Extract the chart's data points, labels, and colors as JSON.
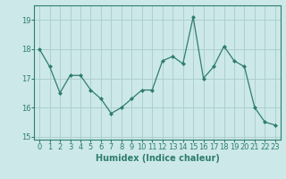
{
  "x": [
    0,
    1,
    2,
    3,
    4,
    5,
    6,
    7,
    8,
    9,
    10,
    11,
    12,
    13,
    14,
    15,
    16,
    17,
    18,
    19,
    20,
    21,
    22,
    23
  ],
  "y": [
    18.0,
    17.4,
    16.5,
    17.1,
    17.1,
    16.6,
    16.3,
    15.8,
    16.0,
    16.3,
    16.6,
    16.6,
    17.6,
    17.75,
    17.5,
    19.1,
    17.0,
    17.4,
    18.1,
    17.6,
    17.4,
    16.0,
    15.5,
    15.4
  ],
  "line_color": "#2e7d6e",
  "marker": "D",
  "marker_size": 2,
  "bg_color": "#cce8e8",
  "grid_color": "#aacccc",
  "xlabel": "Humidex (Indice chaleur)",
  "xlim": [
    -0.5,
    23.5
  ],
  "ylim": [
    14.9,
    19.5
  ],
  "yticks": [
    15,
    16,
    17,
    18,
    19
  ],
  "xticks": [
    0,
    1,
    2,
    3,
    4,
    5,
    6,
    7,
    8,
    9,
    10,
    11,
    12,
    13,
    14,
    15,
    16,
    17,
    18,
    19,
    20,
    21,
    22,
    23
  ],
  "axis_fontsize": 7,
  "tick_fontsize": 6,
  "xlabel_fontsize": 7
}
